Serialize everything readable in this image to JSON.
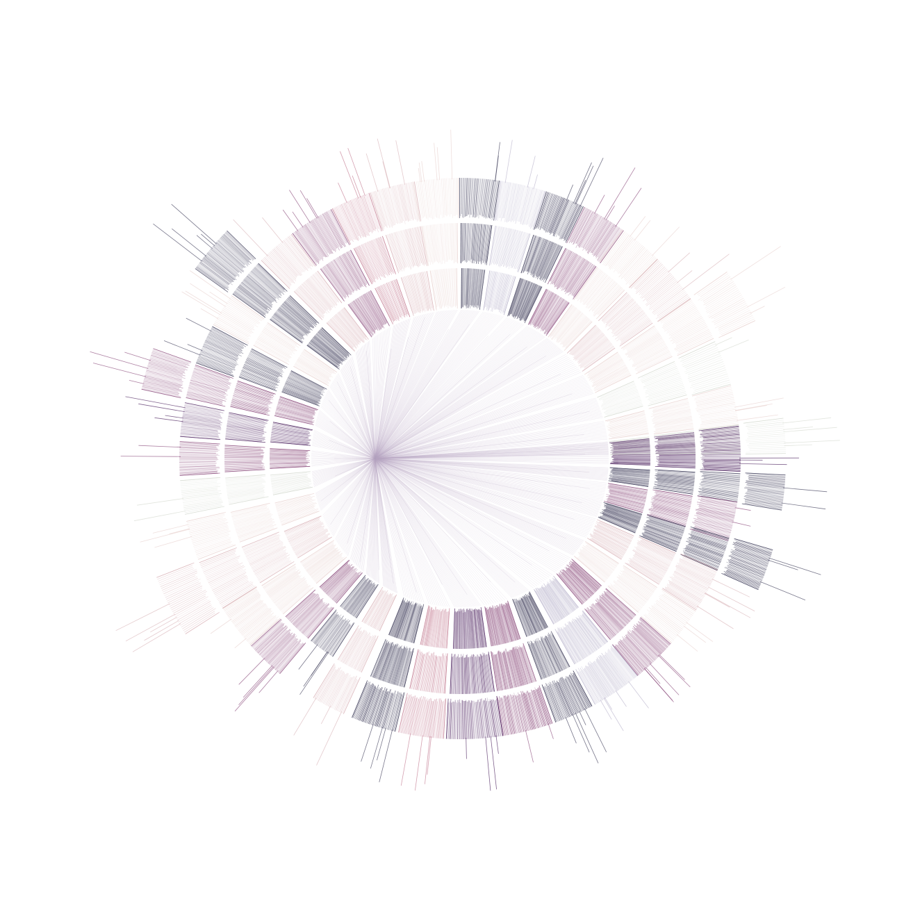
{
  "diagram": {
    "type": "radial-tree",
    "background": "#ffffff",
    "palette": {
      "deep_purple": "#4a1f5c",
      "slate_purple": "#3f3d5a",
      "mauve": "#8a4a7a",
      "rose": "#c2788e",
      "blush": "#d9b3b8",
      "pale_rose": "#e8d2cf",
      "sage_grey": "#d5dad0",
      "lavender_grey": "#b9b4cc",
      "link": "#b9a9c3"
    },
    "clusters": [
      {
        "angle": -2,
        "span": 8,
        "levels": 3,
        "tone": "deep_purple",
        "density": 0.9
      },
      {
        "angle": 6,
        "span": 5,
        "levels": 4,
        "tone": "slate_purple",
        "density": 0.8
      },
      {
        "angle": 13,
        "span": 7,
        "levels": 3,
        "tone": "mauve",
        "density": 0.7
      },
      {
        "angle": 20,
        "span": 6,
        "levels": 4,
        "tone": "slate_purple",
        "density": 0.9
      },
      {
        "angle": 28,
        "span": 8,
        "levels": 3,
        "tone": "blush",
        "density": 0.6
      },
      {
        "angle": 37,
        "span": 7,
        "levels": 3,
        "tone": "pale_rose",
        "density": 0.5
      },
      {
        "angle": 46,
        "span": 8,
        "levels": 3,
        "tone": "mauve",
        "density": 0.8
      },
      {
        "angle": 56,
        "span": 9,
        "levels": 3,
        "tone": "lavender_grey",
        "density": 0.8
      },
      {
        "angle": 66,
        "span": 7,
        "levels": 3,
        "tone": "slate_purple",
        "density": 0.9
      },
      {
        "angle": 76,
        "span": 9,
        "levels": 3,
        "tone": "mauve",
        "density": 0.9
      },
      {
        "angle": 87,
        "span": 10,
        "levels": 3,
        "tone": "deep_purple",
        "density": 0.8
      },
      {
        "angle": 98,
        "span": 8,
        "levels": 3,
        "tone": "rose",
        "density": 0.7
      },
      {
        "angle": 108,
        "span": 8,
        "levels": 3,
        "tone": "slate_purple",
        "density": 0.9
      },
      {
        "angle": 118,
        "span": 6,
        "levels": 3,
        "tone": "blush",
        "density": 0.6
      },
      {
        "angle": 126,
        "span": 6,
        "levels": 2,
        "tone": "slate_purple",
        "density": 0.7
      },
      {
        "angle": 134,
        "span": 7,
        "levels": 3,
        "tone": "mauve",
        "density": 0.7
      },
      {
        "angle": 143,
        "span": 8,
        "levels": 3,
        "tone": "pale_rose",
        "density": 0.6
      },
      {
        "angle": 153,
        "span": 9,
        "levels": 4,
        "tone": "blush",
        "density": 0.5
      },
      {
        "angle": 163,
        "span": 7,
        "levels": 3,
        "tone": "pale_rose",
        "density": 0.5
      },
      {
        "angle": 172,
        "span": 6,
        "levels": 3,
        "tone": "sage_grey",
        "density": 0.5
      },
      {
        "angle": 180,
        "span": 6,
        "levels": 3,
        "tone": "mauve",
        "density": 0.7
      },
      {
        "angle": 188,
        "span": 6,
        "levels": 3,
        "tone": "deep_purple",
        "density": 0.6
      },
      {
        "angle": 196,
        "span": 6,
        "levels": 4,
        "tone": "mauve",
        "density": 0.7
      },
      {
        "angle": 204,
        "span": 7,
        "levels": 3,
        "tone": "slate_purple",
        "density": 0.7
      },
      {
        "angle": 212,
        "span": 6,
        "levels": 3,
        "tone": "pale_rose",
        "density": 0.5
      },
      {
        "angle": 220,
        "span": 7,
        "levels": 4,
        "tone": "slate_purple",
        "density": 0.8
      },
      {
        "angle": 229,
        "span": 7,
        "levels": 3,
        "tone": "blush",
        "density": 0.6
      },
      {
        "angle": 238,
        "span": 8,
        "levels": 3,
        "tone": "mauve",
        "density": 0.7
      },
      {
        "angle": 247,
        "span": 7,
        "levels": 3,
        "tone": "rose",
        "density": 0.6
      },
      {
        "angle": 256,
        "span": 8,
        "levels": 3,
        "tone": "blush",
        "density": 0.6
      },
      {
        "angle": 265,
        "span": 8,
        "levels": 3,
        "tone": "pale_rose",
        "density": 0.5
      },
      {
        "angle": 274,
        "span": 7,
        "levels": 3,
        "tone": "slate_purple",
        "density": 0.8
      },
      {
        "angle": 283,
        "span": 8,
        "levels": 3,
        "tone": "lavender_grey",
        "density": 0.6
      },
      {
        "angle": 292,
        "span": 7,
        "levels": 3,
        "tone": "slate_purple",
        "density": 0.9
      },
      {
        "angle": 301,
        "span": 8,
        "levels": 3,
        "tone": "mauve",
        "density": 0.7
      },
      {
        "angle": 310,
        "span": 8,
        "levels": 3,
        "tone": "pale_rose",
        "density": 0.5
      },
      {
        "angle": 320,
        "span": 9,
        "levels": 3,
        "tone": "blush",
        "density": 0.5
      },
      {
        "angle": 330,
        "span": 8,
        "levels": 4,
        "tone": "pale_rose",
        "density": 0.5
      },
      {
        "angle": 340,
        "span": 8,
        "levels": 3,
        "tone": "sage_grey",
        "density": 0.4
      },
      {
        "angle": 349,
        "span": 7,
        "levels": 3,
        "tone": "pale_rose",
        "density": 0.5
      },
      {
        "angle": 356,
        "span": 5,
        "levels": 4,
        "tone": "sage_grey",
        "density": 0.5
      }
    ]
  }
}
